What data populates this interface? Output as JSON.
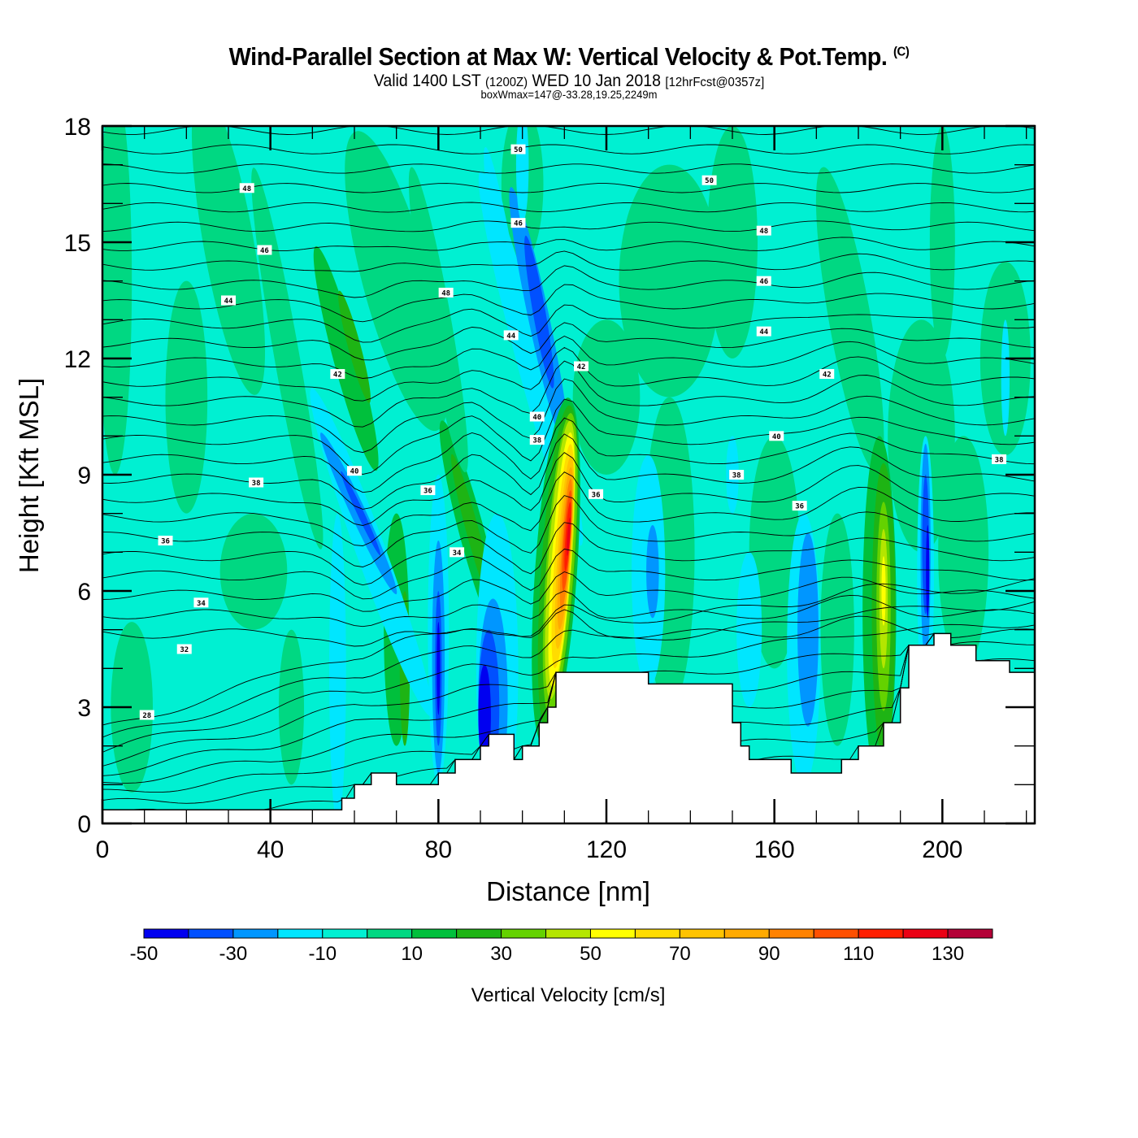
{
  "header": {
    "title": "Wind-Parallel Section at Max W: Vertical Velocity & Pot.Temp.",
    "copyright": "(C)",
    "valid_prefix": "Valid 1400 LST",
    "valid_utc": "(1200Z)",
    "valid_date": "WED 10 Jan 2018",
    "forecast": "[12hrFcst@0357z]",
    "box_wmax": "boxWmax=147@-33.28,19.25,2249m"
  },
  "chart_data": {
    "type": "heatmap",
    "title": "Wind-Parallel Section at Max W: Vertical Velocity & Pot.Temp.",
    "xlabel": "Distance [nm]",
    "ylabel": "Height [Kft MSL]",
    "xlim": [
      0,
      222
    ],
    "ylim": [
      0,
      18
    ],
    "xticks": [
      "0",
      "40",
      "80",
      "120",
      "160",
      "200"
    ],
    "xtick_values": [
      0,
      40,
      80,
      120,
      160,
      200
    ],
    "yticks": [
      "0",
      "3",
      "6",
      "9",
      "12",
      "15",
      "18"
    ],
    "ytick_values": [
      0,
      3,
      6,
      9,
      12,
      15,
      18
    ],
    "colorbar": {
      "label": "Vertical Velocity [cm/s]",
      "levels": [
        -50,
        -40,
        -30,
        -20,
        -10,
        0,
        10,
        20,
        30,
        40,
        50,
        60,
        70,
        80,
        90,
        100,
        110,
        120,
        130,
        140
      ],
      "tick_labels": [
        "-50",
        "-30",
        "-10",
        "10",
        "30",
        "50",
        "70",
        "90",
        "110",
        "130"
      ],
      "tick_values": [
        -50,
        -30,
        -10,
        10,
        30,
        50,
        70,
        90,
        110,
        130
      ],
      "colors": [
        "#0000f0",
        "#0050ff",
        "#0096ff",
        "#00e6ff",
        "#00f0d2",
        "#00d882",
        "#00c03c",
        "#1eb414",
        "#64d200",
        "#b4e600",
        "#ffff00",
        "#ffdc00",
        "#ffc300",
        "#ffaa00",
        "#ff8200",
        "#ff5000",
        "#ff1e00",
        "#eb0014",
        "#b40037"
      ]
    },
    "terrain_profile_kft": {
      "distance_nm": [
        0,
        57,
        57,
        60,
        60,
        64,
        64,
        70,
        70,
        80,
        80,
        84,
        84,
        86,
        86,
        90,
        90,
        92,
        92,
        94,
        94,
        98,
        98,
        100,
        100,
        104,
        104,
        106,
        106,
        108,
        108,
        112,
        112,
        130,
        130,
        150,
        150,
        152,
        152,
        154,
        154,
        156,
        156,
        164,
        164,
        176,
        176,
        180,
        180,
        186,
        186,
        190,
        190,
        192,
        192,
        198,
        198,
        202,
        202,
        208,
        208,
        216,
        216,
        222
      ],
      "height_kft": [
        0.35,
        0.35,
        0.65,
        0.65,
        1.0,
        1.0,
        1.3,
        1.3,
        1.0,
        1.0,
        1.3,
        1.3,
        1.65,
        1.65,
        1.65,
        1.65,
        2.0,
        2.0,
        2.3,
        2.3,
        2.3,
        2.3,
        1.65,
        1.65,
        2.0,
        2.0,
        2.6,
        2.6,
        3.0,
        3.0,
        3.9,
        3.9,
        3.9,
        3.9,
        3.6,
        3.6,
        2.6,
        2.6,
        2.0,
        2.0,
        1.65,
        1.65,
        1.65,
        1.65,
        1.3,
        1.3,
        1.65,
        1.65,
        2.0,
        2.0,
        2.6,
        2.6,
        3.5,
        3.5,
        4.6,
        4.6,
        4.9,
        4.9,
        4.6,
        4.6,
        4.2,
        4.2,
        3.9,
        3.9
      ]
    },
    "potential_temperature_labels": [
      {
        "text": "28",
        "x": 10.6,
        "y": 2.8
      },
      {
        "text": "32",
        "x": 19.5,
        "y": 4.5
      },
      {
        "text": "34",
        "x": 23.5,
        "y": 5.7
      },
      {
        "text": "36",
        "x": 15.0,
        "y": 7.3
      },
      {
        "text": "38",
        "x": 36.6,
        "y": 8.8
      },
      {
        "text": "40",
        "x": 60.0,
        "y": 9.1
      },
      {
        "text": "42",
        "x": 56.0,
        "y": 11.6
      },
      {
        "text": "44",
        "x": 30.0,
        "y": 13.5
      },
      {
        "text": "46",
        "x": 38.6,
        "y": 14.8
      },
      {
        "text": "48",
        "x": 34.4,
        "y": 16.4
      },
      {
        "text": "36",
        "x": 77.5,
        "y": 8.6
      },
      {
        "text": "34",
        "x": 84.4,
        "y": 7.0
      },
      {
        "text": "48",
        "x": 81.8,
        "y": 13.7
      },
      {
        "text": "44",
        "x": 97.3,
        "y": 12.6
      },
      {
        "text": "46",
        "x": 99.0,
        "y": 15.5
      },
      {
        "text": "50",
        "x": 99.0,
        "y": 17.4
      },
      {
        "text": "40",
        "x": 103.5,
        "y": 10.5
      },
      {
        "text": "38",
        "x": 103.5,
        "y": 9.9
      },
      {
        "text": "42",
        "x": 114.0,
        "y": 11.8
      },
      {
        "text": "36",
        "x": 117.5,
        "y": 8.5
      },
      {
        "text": "50",
        "x": 144.5,
        "y": 16.6
      },
      {
        "text": "48",
        "x": 157.5,
        "y": 15.3
      },
      {
        "text": "46",
        "x": 157.5,
        "y": 14.0
      },
      {
        "text": "44",
        "x": 157.5,
        "y": 12.7
      },
      {
        "text": "38",
        "x": 151.0,
        "y": 9.0
      },
      {
        "text": "40",
        "x": 160.5,
        "y": 10.0
      },
      {
        "text": "36",
        "x": 166.0,
        "y": 8.2
      },
      {
        "text": "42",
        "x": 172.5,
        "y": 11.6
      },
      {
        "text": "38",
        "x": 213.5,
        "y": 9.4
      }
    ],
    "features": [
      {
        "name": "max updraft core",
        "x_nm": 109,
        "y_kft": 7.0,
        "w_cm_s": 130
      },
      {
        "name": "secondary updraft",
        "x_nm": 186,
        "y_kft": 6.0,
        "w_cm_s": 50
      },
      {
        "name": "downdraft",
        "x_nm": 104,
        "y_kft": 13.0,
        "w_cm_s": -40
      },
      {
        "name": "downdraft",
        "x_nm": 80,
        "y_kft": 4.0,
        "w_cm_s": -50
      },
      {
        "name": "downdraft",
        "x_nm": 94,
        "y_kft": 3.0,
        "w_cm_s": -40
      },
      {
        "name": "downdraft",
        "x_nm": 196,
        "y_kft": 7.0,
        "w_cm_s": -40
      },
      {
        "name": "downdraft",
        "x_nm": 61,
        "y_kft": 8.0,
        "w_cm_s": -40
      }
    ]
  }
}
